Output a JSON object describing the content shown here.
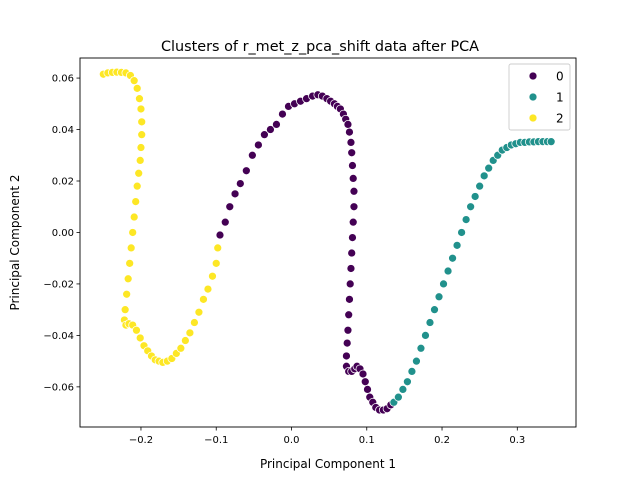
{
  "chart_data": {
    "type": "scatter",
    "title": "Clusters of r_met_z_pca_shift data after PCA",
    "xlabel": "Principal Component 1",
    "ylabel": "Principal Component 2",
    "xlim": [
      -0.281,
      0.378
    ],
    "ylim": [
      -0.0756,
      0.0678
    ],
    "xticks": [
      -0.2,
      -0.1,
      0.0,
      0.1,
      0.2,
      0.3
    ],
    "xtick_labels": [
      "−0.2",
      "−0.1",
      "0.0",
      "0.1",
      "0.2",
      "0.3"
    ],
    "yticks": [
      -0.06,
      -0.04,
      -0.02,
      0.0,
      0.02,
      0.04,
      0.06
    ],
    "ytick_labels": [
      "−0.06",
      "−0.04",
      "−0.02",
      "0.00",
      "0.02",
      "0.04",
      "0.06"
    ],
    "grid": false,
    "legend_position": "top-right",
    "series": [
      {
        "name": "0",
        "color": "#440154",
        "points": [
          [
            -0.095,
            -0.001
          ],
          [
            -0.088,
            0.004
          ],
          [
            -0.082,
            0.01
          ],
          [
            -0.075,
            0.015
          ],
          [
            -0.068,
            0.019
          ],
          [
            -0.06,
            0.024
          ],
          [
            -0.052,
            0.03
          ],
          [
            -0.044,
            0.034
          ],
          [
            -0.036,
            0.038
          ],
          [
            -0.028,
            0.04
          ],
          [
            -0.02,
            0.042
          ],
          [
            -0.012,
            0.046
          ],
          [
            -0.004,
            0.049
          ],
          [
            0.004,
            0.05
          ],
          [
            0.012,
            0.051
          ],
          [
            0.02,
            0.052
          ],
          [
            0.028,
            0.053
          ],
          [
            0.035,
            0.0535
          ],
          [
            0.041,
            0.053
          ],
          [
            0.047,
            0.052
          ],
          [
            0.052,
            0.051
          ],
          [
            0.057,
            0.05
          ],
          [
            0.061,
            0.049
          ],
          [
            0.065,
            0.048
          ],
          [
            0.069,
            0.046
          ],
          [
            0.072,
            0.044
          ],
          [
            0.075,
            0.042
          ],
          [
            0.077,
            0.039
          ],
          [
            0.079,
            0.035
          ],
          [
            0.08,
            0.031
          ],
          [
            0.081,
            0.026
          ],
          [
            0.082,
            0.021
          ],
          [
            0.083,
            0.016
          ],
          [
            0.083,
            0.01
          ],
          [
            0.082,
            0.004
          ],
          [
            0.081,
            -0.002
          ],
          [
            0.08,
            -0.008
          ],
          [
            0.079,
            -0.014
          ],
          [
            0.078,
            -0.02
          ],
          [
            0.077,
            -0.026
          ],
          [
            0.076,
            -0.032
          ],
          [
            0.075,
            -0.038
          ],
          [
            0.074,
            -0.043
          ],
          [
            0.073,
            -0.048
          ],
          [
            0.073,
            -0.052
          ],
          [
            0.076,
            -0.054
          ],
          [
            0.08,
            -0.054
          ],
          [
            0.084,
            -0.053
          ],
          [
            0.087,
            -0.052
          ],
          [
            0.091,
            -0.053
          ],
          [
            0.095,
            -0.055
          ],
          [
            0.098,
            -0.058
          ],
          [
            0.101,
            -0.061
          ],
          [
            0.104,
            -0.064
          ],
          [
            0.108,
            -0.066
          ],
          [
            0.112,
            -0.068
          ],
          [
            0.117,
            -0.069
          ],
          [
            0.122,
            -0.069
          ],
          [
            0.127,
            -0.0685
          ],
          [
            0.132,
            -0.067
          ]
        ]
      },
      {
        "name": "1",
        "color": "#21918c",
        "points": [
          [
            0.136,
            -0.066
          ],
          [
            0.142,
            -0.064
          ],
          [
            0.148,
            -0.061
          ],
          [
            0.154,
            -0.058
          ],
          [
            0.16,
            -0.054
          ],
          [
            0.166,
            -0.05
          ],
          [
            0.172,
            -0.045
          ],
          [
            0.178,
            -0.04
          ],
          [
            0.184,
            -0.035
          ],
          [
            0.19,
            -0.03
          ],
          [
            0.196,
            -0.025
          ],
          [
            0.202,
            -0.02
          ],
          [
            0.208,
            -0.015
          ],
          [
            0.214,
            -0.01
          ],
          [
            0.22,
            -0.005
          ],
          [
            0.226,
            0.0
          ],
          [
            0.232,
            0.005
          ],
          [
            0.238,
            0.01
          ],
          [
            0.244,
            0.014
          ],
          [
            0.25,
            0.018
          ],
          [
            0.256,
            0.022
          ],
          [
            0.262,
            0.025
          ],
          [
            0.268,
            0.028
          ],
          [
            0.274,
            0.03
          ],
          [
            0.28,
            0.032
          ],
          [
            0.286,
            0.033
          ],
          [
            0.292,
            0.034
          ],
          [
            0.298,
            0.0345
          ],
          [
            0.304,
            0.035
          ],
          [
            0.31,
            0.035
          ],
          [
            0.316,
            0.0352
          ],
          [
            0.322,
            0.0352
          ],
          [
            0.328,
            0.0353
          ],
          [
            0.334,
            0.0353
          ],
          [
            0.34,
            0.0353
          ],
          [
            0.345,
            0.0353
          ]
        ]
      },
      {
        "name": "2",
        "color": "#fde725",
        "points": [
          [
            -0.25,
            0.0615
          ],
          [
            -0.244,
            0.062
          ],
          [
            -0.238,
            0.0622
          ],
          [
            -0.232,
            0.0623
          ],
          [
            -0.226,
            0.0622
          ],
          [
            -0.22,
            0.062
          ],
          [
            -0.214,
            0.061
          ],
          [
            -0.209,
            0.059
          ],
          [
            -0.205,
            0.056
          ],
          [
            -0.202,
            0.052
          ],
          [
            -0.2,
            0.048
          ],
          [
            -0.199,
            0.043
          ],
          [
            -0.199,
            0.038
          ],
          [
            -0.2,
            0.033
          ],
          [
            -0.201,
            0.028
          ],
          [
            -0.203,
            0.023
          ],
          [
            -0.205,
            0.018
          ],
          [
            -0.207,
            0.012
          ],
          [
            -0.209,
            0.006
          ],
          [
            -0.211,
            0.0
          ],
          [
            -0.213,
            -0.006
          ],
          [
            -0.215,
            -0.012
          ],
          [
            -0.217,
            -0.018
          ],
          [
            -0.219,
            -0.024
          ],
          [
            -0.221,
            -0.03
          ],
          [
            -0.222,
            -0.034
          ],
          [
            -0.22,
            -0.036
          ],
          [
            -0.216,
            -0.0355
          ],
          [
            -0.211,
            -0.036
          ],
          [
            -0.206,
            -0.038
          ],
          [
            -0.201,
            -0.041
          ],
          [
            -0.196,
            -0.044
          ],
          [
            -0.191,
            -0.046
          ],
          [
            -0.186,
            -0.048
          ],
          [
            -0.181,
            -0.0495
          ],
          [
            -0.176,
            -0.05
          ],
          [
            -0.171,
            -0.0505
          ],
          [
            -0.165,
            -0.05
          ],
          [
            -0.159,
            -0.049
          ],
          [
            -0.153,
            -0.047
          ],
          [
            -0.147,
            -0.045
          ],
          [
            -0.141,
            -0.042
          ],
          [
            -0.135,
            -0.039
          ],
          [
            -0.129,
            -0.035
          ],
          [
            -0.123,
            -0.031
          ],
          [
            -0.117,
            -0.026
          ],
          [
            -0.111,
            -0.022
          ],
          [
            -0.105,
            -0.017
          ],
          [
            -0.1,
            -0.012
          ],
          [
            -0.098,
            -0.006
          ]
        ]
      }
    ]
  }
}
